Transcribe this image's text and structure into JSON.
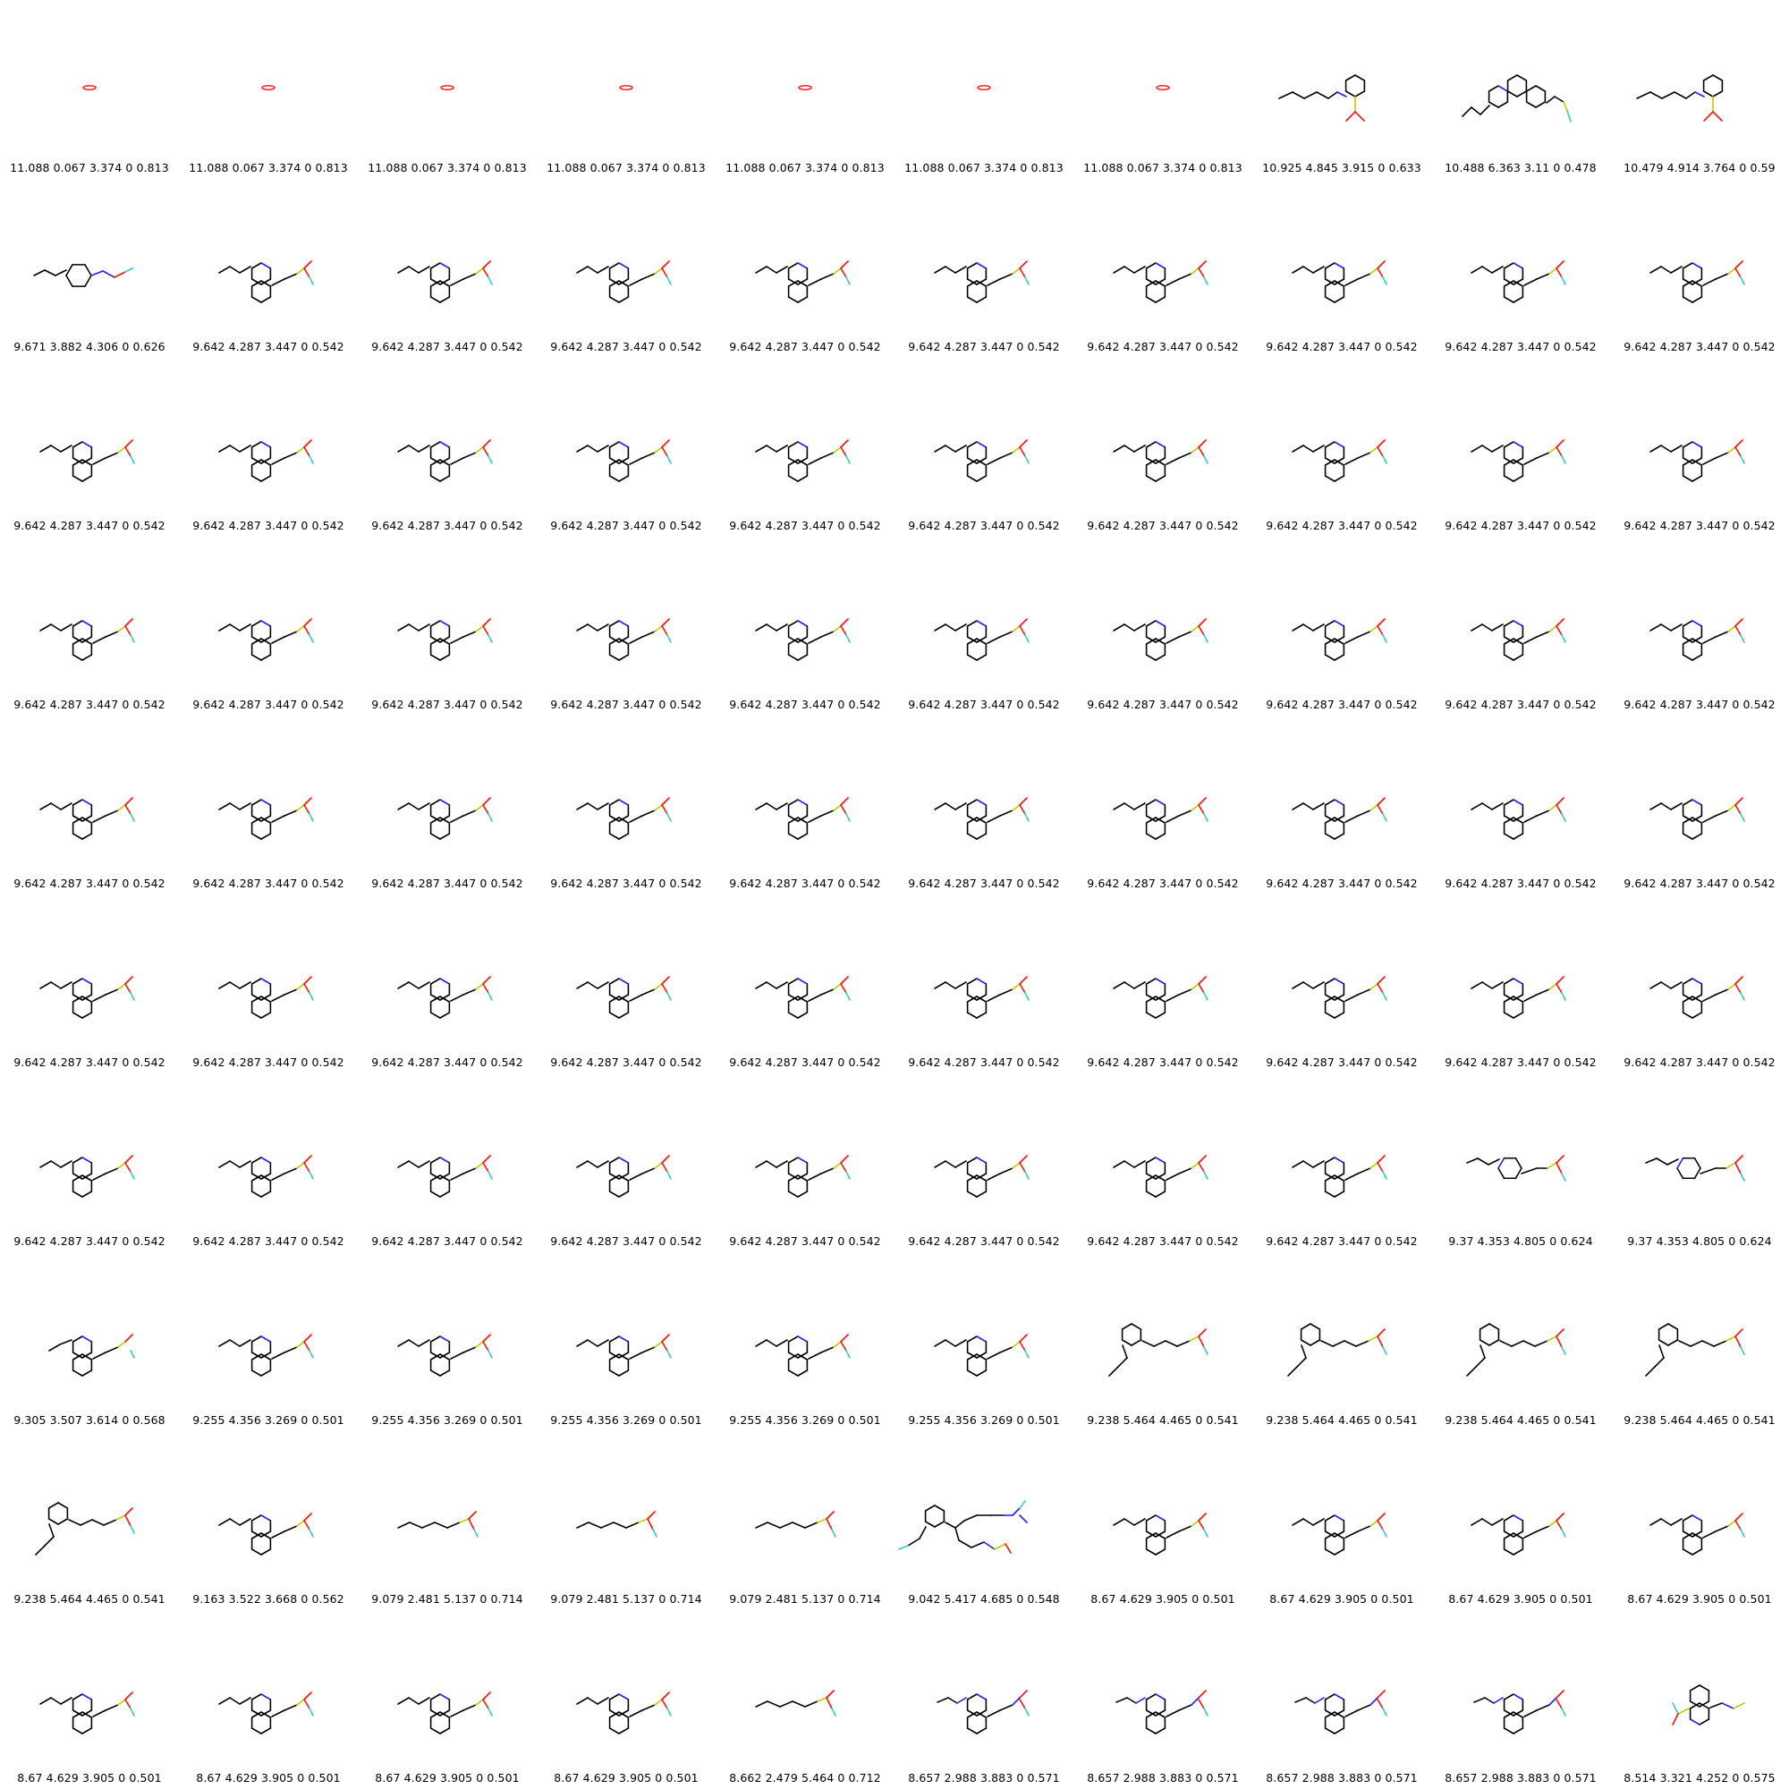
{
  "colors": {
    "bond": "#000000",
    "N": "#2020ff",
    "O": "#ff0d0d",
    "S": "#c8c800",
    "F": "#33cccc"
  },
  "rows": [
    [
      {
        "label": "11.088 0.067 3.374 0 0.813",
        "mol": "o2"
      },
      {
        "label": "11.088 0.067 3.374 0 0.813",
        "mol": "o2"
      },
      {
        "label": "11.088 0.067 3.374 0 0.813",
        "mol": "o2"
      },
      {
        "label": "11.088 0.067 3.374 0 0.813",
        "mol": "o2"
      },
      {
        "label": "11.088 0.067 3.374 0 0.813",
        "mol": "o2"
      },
      {
        "label": "11.088 0.067 3.374 0 0.813",
        "mol": "o2"
      },
      {
        "label": "11.088 0.067 3.374 0 0.813",
        "mol": "o2"
      },
      {
        "label": "10.925 4.845 3.915 0 0.633",
        "mol": "chain_phenyl"
      },
      {
        "label": "10.488 6.363 3.11 0 0.478",
        "mol": "phen"
      },
      {
        "label": "10.479 4.914 3.764 0 0.59",
        "mol": "chain_phenyl"
      }
    ],
    [
      {
        "label": "9.671 3.882 4.306 0 0.626",
        "mol": "cyclo"
      },
      {
        "label": "9.642 4.287 3.447 0 0.542",
        "mol": "quin"
      },
      {
        "label": "9.642 4.287 3.447 0 0.542",
        "mol": "quin"
      },
      {
        "label": "9.642 4.287 3.447 0 0.542",
        "mol": "quin"
      },
      {
        "label": "9.642 4.287 3.447 0 0.542",
        "mol": "quin"
      },
      {
        "label": "9.642 4.287 3.447 0 0.542",
        "mol": "quin"
      },
      {
        "label": "9.642 4.287 3.447 0 0.542",
        "mol": "quin"
      },
      {
        "label": "9.642 4.287 3.447 0 0.542",
        "mol": "quin"
      },
      {
        "label": "9.642 4.287 3.447 0 0.542",
        "mol": "quin"
      },
      {
        "label": "9.642 4.287 3.447 0 0.542",
        "mol": "quin"
      }
    ],
    [
      {
        "label": "9.642 4.287 3.447 0 0.542",
        "mol": "quin"
      },
      {
        "label": "9.642 4.287 3.447 0 0.542",
        "mol": "quin"
      },
      {
        "label": "9.642 4.287 3.447 0 0.542",
        "mol": "quin"
      },
      {
        "label": "9.642 4.287 3.447 0 0.542",
        "mol": "quin"
      },
      {
        "label": "9.642 4.287 3.447 0 0.542",
        "mol": "quin"
      },
      {
        "label": "9.642 4.287 3.447 0 0.542",
        "mol": "quin"
      },
      {
        "label": "9.642 4.287 3.447 0 0.542",
        "mol": "quin"
      },
      {
        "label": "9.642 4.287 3.447 0 0.542",
        "mol": "quin"
      },
      {
        "label": "9.642 4.287 3.447 0 0.542",
        "mol": "quin"
      },
      {
        "label": "9.642 4.287 3.447 0 0.542",
        "mol": "quin"
      }
    ],
    [
      {
        "label": "9.642 4.287 3.447 0 0.542",
        "mol": "quin"
      },
      {
        "label": "9.642 4.287 3.447 0 0.542",
        "mol": "quin"
      },
      {
        "label": "9.642 4.287 3.447 0 0.542",
        "mol": "quin"
      },
      {
        "label": "9.642 4.287 3.447 0 0.542",
        "mol": "quin"
      },
      {
        "label": "9.642 4.287 3.447 0 0.542",
        "mol": "quin"
      },
      {
        "label": "9.642 4.287 3.447 0 0.542",
        "mol": "quin"
      },
      {
        "label": "9.642 4.287 3.447 0 0.542",
        "mol": "quin"
      },
      {
        "label": "9.642 4.287 3.447 0 0.542",
        "mol": "quin"
      },
      {
        "label": "9.642 4.287 3.447 0 0.542",
        "mol": "quin"
      },
      {
        "label": "9.642 4.287 3.447 0 0.542",
        "mol": "quin"
      }
    ],
    [
      {
        "label": "9.642 4.287 3.447 0 0.542",
        "mol": "quin"
      },
      {
        "label": "9.642 4.287 3.447 0 0.542",
        "mol": "quin"
      },
      {
        "label": "9.642 4.287 3.447 0 0.542",
        "mol": "quin"
      },
      {
        "label": "9.642 4.287 3.447 0 0.542",
        "mol": "quin"
      },
      {
        "label": "9.642 4.287 3.447 0 0.542",
        "mol": "quin"
      },
      {
        "label": "9.642 4.287 3.447 0 0.542",
        "mol": "quin"
      },
      {
        "label": "9.642 4.287 3.447 0 0.542",
        "mol": "quin"
      },
      {
        "label": "9.642 4.287 3.447 0 0.542",
        "mol": "quin"
      },
      {
        "label": "9.642 4.287 3.447 0 0.542",
        "mol": "quin"
      },
      {
        "label": "9.642 4.287 3.447 0 0.542",
        "mol": "quin"
      }
    ],
    [
      {
        "label": "9.642 4.287 3.447 0 0.542",
        "mol": "quin"
      },
      {
        "label": "9.642 4.287 3.447 0 0.542",
        "mol": "quin"
      },
      {
        "label": "9.642 4.287 3.447 0 0.542",
        "mol": "quin"
      },
      {
        "label": "9.642 4.287 3.447 0 0.542",
        "mol": "quin"
      },
      {
        "label": "9.642 4.287 3.447 0 0.542",
        "mol": "quin"
      },
      {
        "label": "9.642 4.287 3.447 0 0.542",
        "mol": "quin"
      },
      {
        "label": "9.642 4.287 3.447 0 0.542",
        "mol": "quin"
      },
      {
        "label": "9.642 4.287 3.447 0 0.542",
        "mol": "quin"
      },
      {
        "label": "9.642 4.287 3.447 0 0.542",
        "mol": "quin"
      },
      {
        "label": "9.642 4.287 3.447 0 0.542",
        "mol": "quin"
      }
    ],
    [
      {
        "label": "9.642 4.287 3.447 0 0.542",
        "mol": "quin"
      },
      {
        "label": "9.642 4.287 3.447 0 0.542",
        "mol": "quin"
      },
      {
        "label": "9.642 4.287 3.447 0 0.542",
        "mol": "quin"
      },
      {
        "label": "9.642 4.287 3.447 0 0.542",
        "mol": "quin"
      },
      {
        "label": "9.642 4.287 3.447 0 0.542",
        "mol": "quin"
      },
      {
        "label": "9.642 4.287 3.447 0 0.542",
        "mol": "quin"
      },
      {
        "label": "9.642 4.287 3.447 0 0.542",
        "mol": "quin"
      },
      {
        "label": "9.642 4.287 3.447 0 0.542",
        "mol": "quin"
      },
      {
        "label": "9.37 4.353 4.805 0 0.624",
        "mol": "cyclo_s"
      },
      {
        "label": "9.37 4.353 4.805 0 0.624",
        "mol": "cyclo_s"
      }
    ],
    [
      {
        "label": "9.305 3.507 3.614 0 0.568",
        "mol": "quin_ethyl"
      },
      {
        "label": "9.255 4.356 3.269 0 0.501",
        "mol": "quin"
      },
      {
        "label": "9.255 4.356 3.269 0 0.501",
        "mol": "quin"
      },
      {
        "label": "9.255 4.356 3.269 0 0.501",
        "mol": "quin"
      },
      {
        "label": "9.255 4.356 3.269 0 0.501",
        "mol": "quin"
      },
      {
        "label": "9.255 4.356 3.269 0 0.501",
        "mol": "quin"
      },
      {
        "label": "9.238 5.464 4.465 0 0.541",
        "mol": "diene"
      },
      {
        "label": "9.238 5.464 4.465 0 0.541",
        "mol": "diene"
      },
      {
        "label": "9.238 5.464 4.465 0 0.541",
        "mol": "diene"
      },
      {
        "label": "9.238 5.464 4.465 0 0.541",
        "mol": "diene"
      }
    ],
    [
      {
        "label": "9.238 5.464 4.465 0 0.541",
        "mol": "diene"
      },
      {
        "label": "9.163 3.522 3.668 0 0.562",
        "mol": "quin"
      },
      {
        "label": "9.079 2.481 5.137 0 0.714",
        "mol": "chain_s"
      },
      {
        "label": "9.079 2.481 5.137 0 0.714",
        "mol": "chain_s"
      },
      {
        "label": "9.079 2.481 5.137 0 0.714",
        "mol": "chain_s"
      },
      {
        "label": "9.042 5.417 4.685 0 0.548",
        "mol": "big"
      },
      {
        "label": "8.67 4.629 3.905 0 0.501",
        "mol": "quin"
      },
      {
        "label": "8.67 4.629 3.905 0 0.501",
        "mol": "quin"
      },
      {
        "label": "8.67 4.629 3.905 0 0.501",
        "mol": "quin"
      },
      {
        "label": "8.67 4.629 3.905 0 0.501",
        "mol": "quin"
      }
    ],
    [
      {
        "label": "8.67 4.629 3.905 0 0.501",
        "mol": "quin"
      },
      {
        "label": "8.67 4.629 3.905 0 0.501",
        "mol": "quin"
      },
      {
        "label": "8.67 4.629 3.905 0 0.501",
        "mol": "quin"
      },
      {
        "label": "8.67 4.629 3.905 0 0.501",
        "mol": "quin"
      },
      {
        "label": "8.662 2.479 5.464 0 0.712",
        "mol": "chain_s"
      },
      {
        "label": "8.657 2.988 3.883 0 0.571",
        "mol": "quin_imine"
      },
      {
        "label": "8.657 2.988 3.883 0 0.571",
        "mol": "quin_imine"
      },
      {
        "label": "8.657 2.988 3.883 0 0.571",
        "mol": "quin_imine"
      },
      {
        "label": "8.657 2.988 3.883 0 0.571",
        "mol": "quin_imine"
      },
      {
        "label": "8.514 3.321 4.252 0 0.575",
        "mol": "quin_rev"
      }
    ]
  ]
}
